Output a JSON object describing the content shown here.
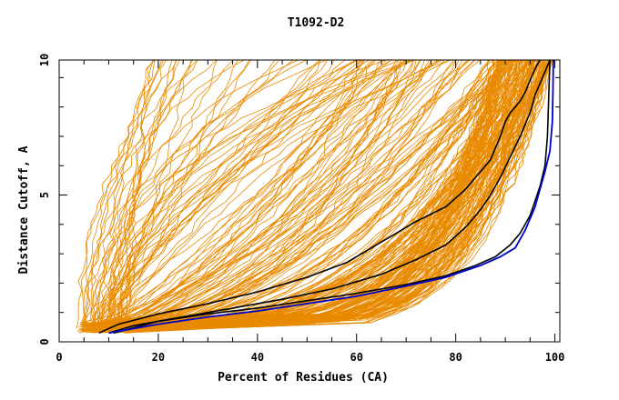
{
  "chart_data": {
    "type": "line",
    "title": "T1092-D2",
    "xlabel": "Percent of Residues (CA)",
    "ylabel": "Distance Cutoff, A",
    "xlim": [
      0,
      101
    ],
    "ylim": [
      0,
      9.6
    ],
    "xticks": [
      0,
      20,
      40,
      60,
      80,
      100
    ],
    "yticks": [
      0,
      5,
      10
    ],
    "grid": false,
    "colors": {
      "models": "#e88a00",
      "highlight": "#000000",
      "best": "#0000cc",
      "axis": "#000000"
    },
    "series": [
      {
        "role": "highlight",
        "x": [
          8,
          12,
          20,
          30,
          40,
          50,
          58,
          65,
          72,
          78,
          82,
          85,
          87,
          88,
          89,
          90,
          91,
          92,
          93,
          94,
          95,
          96,
          97
        ],
        "y": [
          0.3,
          0.6,
          0.95,
          1.3,
          1.7,
          2.2,
          2.7,
          3.4,
          4.1,
          4.6,
          5.2,
          5.8,
          6.2,
          6.6,
          7.0,
          7.5,
          7.8,
          8.0,
          8.2,
          8.5,
          8.9,
          9.3,
          9.6
        ]
      },
      {
        "role": "highlight",
        "x": [
          10,
          15,
          25,
          35,
          45,
          55,
          65,
          72,
          78,
          82,
          85,
          87,
          89,
          91,
          93,
          95,
          96,
          97,
          98,
          99
        ],
        "y": [
          0.3,
          0.55,
          0.85,
          1.15,
          1.45,
          1.8,
          2.3,
          2.8,
          3.3,
          3.9,
          4.5,
          5.0,
          5.6,
          6.3,
          7.0,
          7.8,
          8.4,
          8.8,
          9.2,
          9.6
        ]
      },
      {
        "role": "highlight",
        "x": [
          11,
          20,
          30,
          40,
          50,
          60,
          70,
          78,
          84,
          88,
          91,
          93,
          95,
          96,
          97,
          98,
          98.5,
          99
        ],
        "y": [
          0.3,
          0.7,
          0.95,
          1.15,
          1.4,
          1.65,
          1.95,
          2.25,
          2.6,
          2.9,
          3.3,
          3.7,
          4.3,
          4.8,
          5.3,
          6.0,
          7.0,
          9.6
        ]
      },
      {
        "role": "best",
        "x": [
          10,
          20,
          30,
          40,
          50,
          60,
          70,
          78,
          85,
          89,
          92,
          94,
          96,
          97,
          98,
          99,
          99.5,
          99.6,
          99.7
        ],
        "y": [
          0.3,
          0.6,
          0.85,
          1.05,
          1.3,
          1.55,
          1.9,
          2.2,
          2.6,
          2.9,
          3.2,
          3.8,
          4.6,
          5.2,
          5.8,
          6.5,
          7.5,
          8.5,
          9.6
        ]
      }
    ]
  }
}
